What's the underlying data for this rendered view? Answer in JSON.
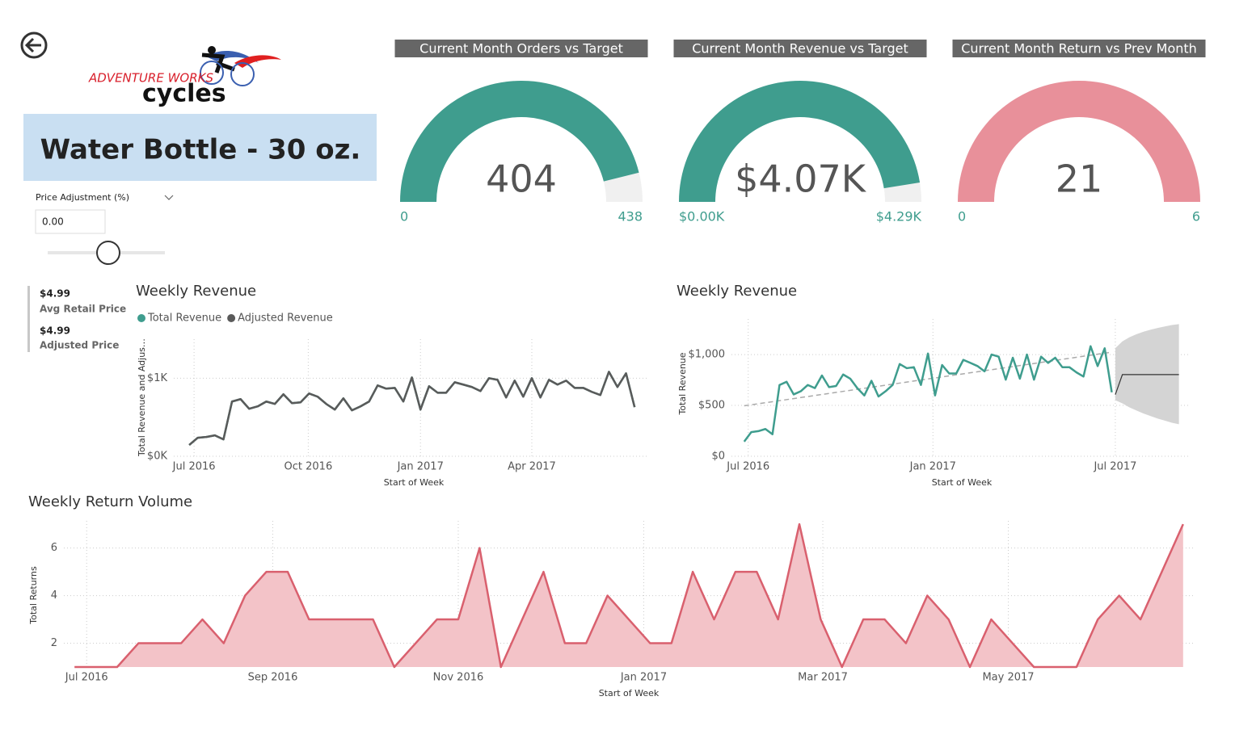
{
  "logo": {
    "brand": "ADVENTURE WORKS",
    "wordmark": "cycles"
  },
  "product": "Water Bottle - 30 oz.",
  "slicer": {
    "label": "Price Adjustment (%)",
    "value": "0.00"
  },
  "cards": [
    {
      "value": "$4.99",
      "label": "Avg Retail Price"
    },
    {
      "value": "$4.99",
      "label": "Adjusted Price"
    }
  ],
  "gauges": [
    {
      "title": "Current Month Orders vs Target",
      "value": 404,
      "min": 0,
      "max": 438,
      "color": "#3f9d8e"
    },
    {
      "title": "Current Month Revenue vs Target",
      "value": 4070,
      "value_label": "$4.07K",
      "min": {
        "value": 0,
        "label": "$0.00K"
      },
      "max": {
        "value": 4290,
        "label": "$4.29K"
      },
      "color": "#3f9d8e"
    },
    {
      "title": "Current Month Return vs Prev Month",
      "value": 21,
      "min": 0,
      "max": 6,
      "color": "#e8909a"
    }
  ],
  "chart_data": [
    {
      "type": "line",
      "title": "Weekly Revenue",
      "x_label": "Start of Week",
      "y_label": "Total Revenue and Adjus…",
      "x": [
        0,
        1,
        2,
        3,
        4,
        5,
        6,
        7,
        8,
        9,
        10,
        11,
        12,
        13,
        14,
        15,
        16,
        17,
        18,
        19,
        20,
        21,
        22,
        23,
        24,
        25,
        26,
        27,
        28,
        29,
        30,
        31,
        32,
        33,
        34,
        35,
        36,
        37,
        38,
        39,
        40,
        41,
        42,
        43,
        44,
        45,
        46,
        47,
        48,
        49,
        50,
        51,
        52
      ],
      "series": [
        {
          "name": "Total Revenue",
          "color": "#3f9d8e",
          "values": [
            144,
            237,
            247,
            268,
            216,
            701,
            732,
            608,
            639,
            701,
            670,
            794,
            680,
            691,
            804,
            763,
            670,
            598,
            742,
            588,
            639,
            701,
            907,
            866,
            876,
            701,
            1010,
            598,
            897,
            814,
            814,
            948,
            918,
            887,
            835,
            1000,
            979,
            753,
            969,
            763,
            1000,
            753,
            979,
            918,
            969,
            876,
            876,
            825,
            784,
            1082,
            887,
            1062,
            629
          ]
        },
        {
          "name": "Adjusted Revenue",
          "color": "#5a5a5a",
          "values": [
            144,
            237,
            247,
            268,
            216,
            701,
            732,
            608,
            639,
            701,
            670,
            794,
            680,
            691,
            804,
            763,
            670,
            598,
            742,
            588,
            639,
            701,
            907,
            866,
            876,
            701,
            1010,
            598,
            897,
            814,
            814,
            948,
            918,
            887,
            835,
            1000,
            979,
            753,
            969,
            763,
            1000,
            753,
            979,
            918,
            969,
            876,
            876,
            825,
            784,
            1082,
            887,
            1062,
            629
          ]
        }
      ],
      "xlim": [
        -1.8,
        53.4
      ],
      "xticks": [
        {
          "value": 0.57,
          "label": "Jul 2016"
        },
        {
          "value": 13.9,
          "label": "Oct 2016"
        },
        {
          "value": 27.0,
          "label": "Jan 2017"
        },
        {
          "value": 40.0,
          "label": "Apr 2017"
        }
      ],
      "ylim": [
        0,
        1500
      ],
      "yticks": [
        {
          "value": 0,
          "label": "$0K"
        },
        {
          "value": 1000,
          "label": "$1K"
        }
      ],
      "grid": true,
      "legend": "top-left"
    },
    {
      "type": "line",
      "title": "Weekly Revenue",
      "x_label": "Start of Week",
      "y_label": "Total Revenue",
      "x": [
        0,
        1,
        2,
        3,
        4,
        5,
        6,
        7,
        8,
        9,
        10,
        11,
        12,
        13,
        14,
        15,
        16,
        17,
        18,
        19,
        20,
        21,
        22,
        23,
        24,
        25,
        26,
        27,
        28,
        29,
        30,
        31,
        32,
        33,
        34,
        35,
        36,
        37,
        38,
        39,
        40,
        41,
        42,
        43,
        44,
        45,
        46,
        47,
        48,
        49,
        50,
        51,
        52
      ],
      "series": [
        {
          "color": "#3f9d8e",
          "values": [
            144,
            237,
            247,
            268,
            216,
            701,
            732,
            608,
            639,
            701,
            670,
            794,
            680,
            691,
            804,
            763,
            670,
            598,
            742,
            588,
            639,
            701,
            907,
            866,
            876,
            701,
            1010,
            598,
            897,
            814,
            814,
            948,
            918,
            887,
            835,
            1000,
            979,
            753,
            969,
            763,
            1000,
            753,
            979,
            918,
            969,
            876,
            876,
            825,
            784,
            1082,
            887,
            1062,
            629
          ]
        }
      ],
      "trend": {
        "x": [
          0,
          52
        ],
        "values": [
          496,
          1024
        ],
        "color": "#aaaaaa"
      },
      "forecast": {
        "x": [
          52.5,
          53.5,
          54.5,
          55.5,
          56.5,
          57.5,
          58.5,
          59.5,
          60.5,
          61.5
        ],
        "values": [
          606,
          803,
          803,
          803,
          803,
          803,
          803,
          803,
          803,
          803
        ],
        "lower": [
          551,
          520,
          480,
          450,
          420,
          395,
          370,
          350,
          330,
          315
        ],
        "upper": [
          1063,
          1130,
          1170,
          1200,
          1225,
          1245,
          1262,
          1277,
          1290,
          1299
        ],
        "color": "#333333",
        "band_color": "#d4d4d4"
      },
      "xlim": [
        -1.8,
        62.8
      ],
      "xticks": [
        {
          "value": 0.57,
          "label": "Jul 2016"
        },
        {
          "value": 26.7,
          "label": "Jan 2017"
        },
        {
          "value": 52.5,
          "label": "Jul 2017"
        }
      ],
      "ylim": [
        0,
        1350
      ],
      "yticks": [
        {
          "value": 0,
          "label": "$0"
        },
        {
          "value": 500,
          "label": "$500"
        },
        {
          "value": 1000,
          "label": "$1,000"
        }
      ],
      "grid": true
    },
    {
      "type": "area",
      "title": "Weekly Return Volume",
      "x_label": "Start of Week",
      "y_label": "Total Returns",
      "x": [
        0,
        1,
        2,
        3,
        4,
        5,
        6,
        7,
        8,
        9,
        10,
        11,
        12,
        13,
        14,
        15,
        16,
        17,
        18,
        19,
        20,
        21,
        22,
        23,
        24,
        25,
        26,
        27,
        28,
        29,
        30,
        31,
        32,
        33,
        34,
        35,
        36,
        37,
        38,
        39,
        40,
        41,
        42,
        43,
        44,
        45,
        46,
        47,
        48,
        49,
        50,
        51,
        52
      ],
      "values": [
        1,
        1,
        1,
        2,
        2,
        2,
        3,
        2,
        4,
        5,
        5,
        3,
        3,
        3,
        3,
        1,
        2,
        3,
        3,
        6,
        1,
        3,
        5,
        2,
        2,
        4,
        3,
        2,
        2,
        5,
        3,
        5,
        5,
        3,
        7,
        3,
        1,
        3,
        3,
        2,
        4,
        3,
        1,
        3,
        2,
        1,
        1,
        1,
        3,
        4,
        3,
        5,
        7
      ],
      "color": "#d9606e",
      "fill": "#f3c3c8",
      "xlim": [
        -0.5,
        52.5
      ],
      "xticks": [
        {
          "value": 0.57,
          "label": "Jul 2016"
        },
        {
          "value": 9.3,
          "label": "Sep 2016"
        },
        {
          "value": 18.0,
          "label": "Nov 2016"
        },
        {
          "value": 26.7,
          "label": "Jan 2017"
        },
        {
          "value": 35.1,
          "label": "Mar 2017"
        },
        {
          "value": 43.8,
          "label": "May 2017"
        }
      ],
      "ylim": [
        1,
        7.14
      ],
      "yticks": [
        2,
        4,
        6
      ],
      "grid": true
    }
  ]
}
